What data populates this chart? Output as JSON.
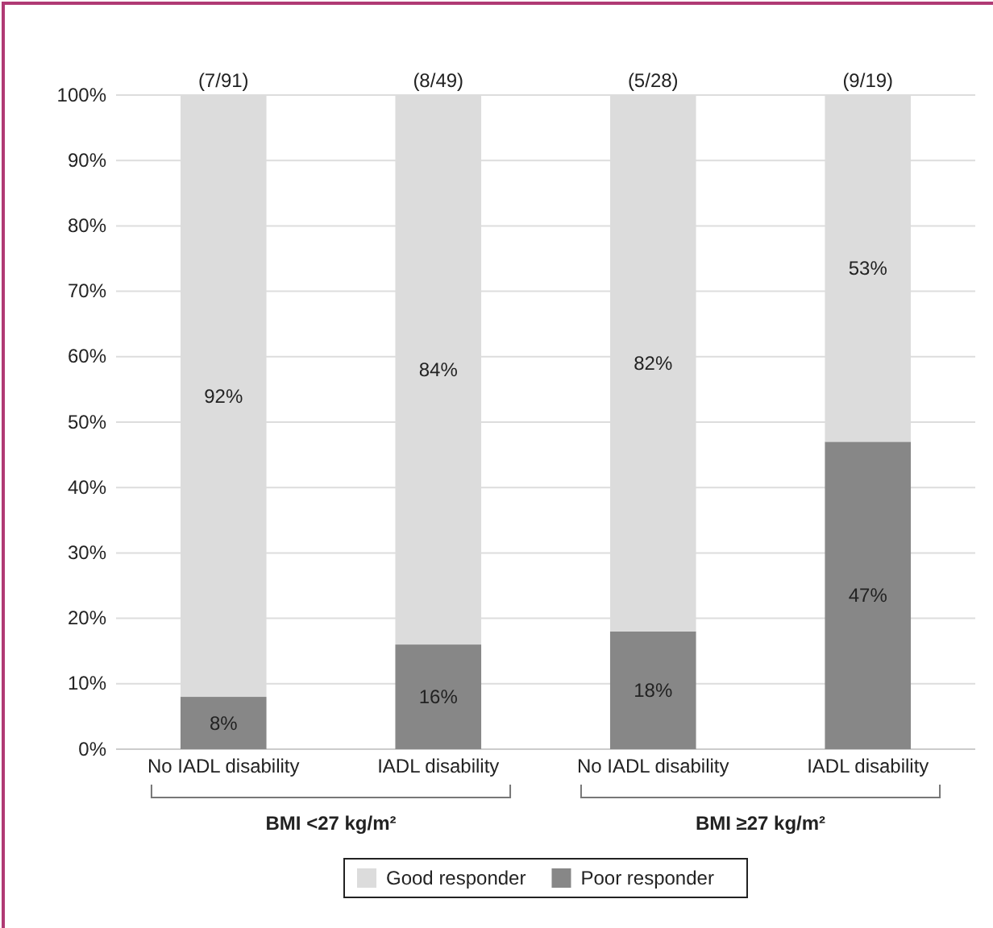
{
  "chart_data": {
    "type": "bar",
    "stacked": true,
    "categories": [
      "No IADL disability",
      "IADL disability",
      "No IADL disability",
      "IADL disability"
    ],
    "series": [
      {
        "name": "Poor responder",
        "color": "#878787",
        "values": [
          8,
          16,
          18,
          47
        ],
        "value_labels": [
          "8%",
          "16%",
          "18%",
          "47%"
        ]
      },
      {
        "name": "Good responder",
        "color": "#dcdcdc",
        "values": [
          92,
          84,
          82,
          53
        ],
        "value_labels": [
          "92%",
          "84%",
          "82%",
          "53%"
        ]
      }
    ],
    "ylim": [
      0,
      100
    ],
    "yticks": [
      {
        "value": 0,
        "label": "0%"
      },
      {
        "value": 10,
        "label": "10%"
      },
      {
        "value": 20,
        "label": "20%"
      },
      {
        "value": 30,
        "label": "30%"
      },
      {
        "value": 40,
        "label": "40%"
      },
      {
        "value": 50,
        "label": "50%"
      },
      {
        "value": 60,
        "label": "60%"
      },
      {
        "value": 70,
        "label": "70%"
      },
      {
        "value": 80,
        "label": "80%"
      },
      {
        "value": 90,
        "label": "90%"
      },
      {
        "value": 100,
        "label": "100%"
      }
    ],
    "grid": "y",
    "legend": "bottom",
    "annotations": [
      "(7/91)",
      "(8/49)",
      "(5/28)",
      "(9/19)",
      "BMI <27 kg/m²",
      "BMI ≥27 kg/m²"
    ]
  }
}
